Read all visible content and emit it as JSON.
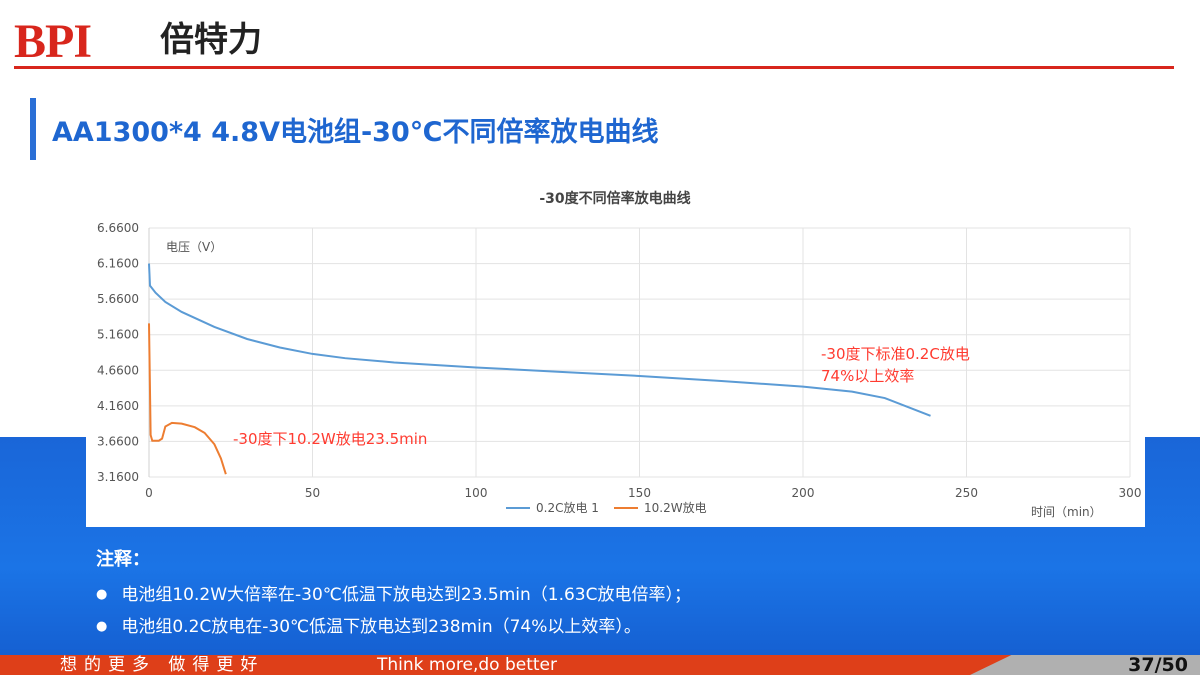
{
  "header": {
    "logo_text": "BPI",
    "logo_cn": "倍特力"
  },
  "slide_title": "AA1300*4  4.8V电池组-30℃不同倍率放电曲线",
  "chart_data": {
    "type": "line",
    "title": "-30度不同倍率放电曲线",
    "ylabel": "电压（V）",
    "xlabel": "时间（min）",
    "xlim": [
      0,
      300
    ],
    "ylim": [
      3.16,
      6.66
    ],
    "xticks": [
      "0",
      "50",
      "100",
      "150",
      "200",
      "250",
      "300"
    ],
    "yticks": [
      "3.1600",
      "3.6600",
      "4.1600",
      "4.6600",
      "5.1600",
      "5.6600",
      "6.1600",
      "6.6600"
    ],
    "grid": true,
    "legend": "bottom",
    "series": [
      {
        "name": "0.2C放电 1",
        "color": "#5b9bd5",
        "x": [
          0,
          0.3,
          2,
          5,
          10,
          20,
          30,
          40,
          50,
          60,
          75,
          100,
          125,
          150,
          175,
          200,
          215,
          225,
          239
        ],
        "y": [
          6.16,
          5.85,
          5.75,
          5.62,
          5.48,
          5.27,
          5.1,
          4.98,
          4.89,
          4.83,
          4.77,
          4.7,
          4.64,
          4.58,
          4.51,
          4.43,
          4.36,
          4.27,
          4.02
        ]
      },
      {
        "name": "10.2W放电",
        "color": "#ed7d31",
        "x": [
          0,
          0.5,
          1,
          3,
          4,
          5,
          7,
          10,
          14,
          17,
          20,
          22,
          23.5
        ],
        "y": [
          5.32,
          3.75,
          3.67,
          3.67,
          3.7,
          3.87,
          3.92,
          3.91,
          3.86,
          3.78,
          3.62,
          3.42,
          3.2
        ]
      }
    ],
    "annotations": [
      {
        "text": "-30度下10.2W放电23.5min",
        "color": "#ff3b30"
      },
      {
        "text": "-30度下标准0.2C放电",
        "color": "#ff3b30"
      },
      {
        "text": "74%以上效率",
        "color": "#ff3b30"
      }
    ]
  },
  "notes": {
    "title": "注释：",
    "items": [
      "电池组10.2W大倍率在-30℃低温下放电达到23.5min（1.63C放电倍率）；",
      "电池组0.2C放电在-30℃低温下放电达到238min（74%以上效率）。"
    ]
  },
  "footer": {
    "slogan_cn": "想的更多 做得更好",
    "slogan_en": "Think more,do better",
    "page": "37/50"
  }
}
